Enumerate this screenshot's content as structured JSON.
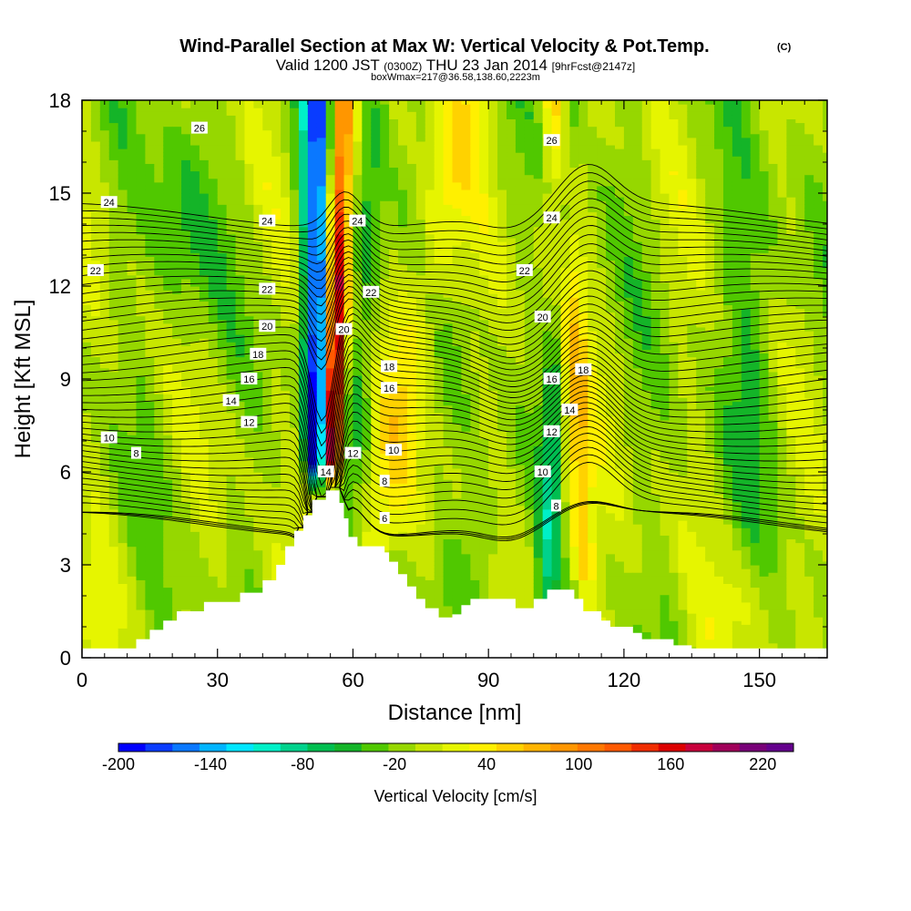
{
  "chart_data": {
    "type": "heatmap",
    "title": "Wind-Parallel Section at Max W: Vertical Velocity & Pot.Temp.",
    "title_mark": "(C)",
    "subtitle_valid": "Valid 1200 JST",
    "subtitle_utc": "(0300Z)",
    "subtitle_date": "THU 23 Jan 2014",
    "subtitle_fcst": "[9hrFcst@2147z]",
    "subtitle_box": "boxWmax=217@36.58,138.60,2223m",
    "xlabel": "Distance [nm]",
    "ylabel": "Height [Kft MSL]",
    "xlim": [
      0,
      165
    ],
    "ylim": [
      0,
      18
    ],
    "x_ticks": [
      0,
      30,
      60,
      90,
      120,
      150
    ],
    "y_ticks": [
      0,
      3,
      6,
      9,
      12,
      15,
      18
    ],
    "colorbar": {
      "label": "Vertical Velocity [cm/s]",
      "tick_labels": [
        "-200",
        "-140",
        "-80",
        "-20",
        "40",
        "100",
        "160",
        "220"
      ],
      "tick_values": [
        -200,
        -140,
        -80,
        -20,
        40,
        100,
        160,
        220
      ],
      "range": [
        -200,
        240
      ],
      "colors": [
        "#0000ff",
        "#0a3cff",
        "#0a78ff",
        "#00b4ff",
        "#00e6ff",
        "#00f0c8",
        "#00d28c",
        "#00be50",
        "#14b428",
        "#50c800",
        "#96d700",
        "#c8e600",
        "#e6f500",
        "#fff000",
        "#ffd200",
        "#ffb400",
        "#ff9600",
        "#ff7800",
        "#ff5a00",
        "#f02d00",
        "#dc0000",
        "#c8003c",
        "#a0005a",
        "#780078",
        "#64008c"
      ]
    },
    "terrain": {
      "x_nm": [
        0,
        12,
        15,
        18,
        21,
        27,
        30,
        35,
        40,
        43,
        45,
        47,
        49,
        51,
        54,
        55,
        57,
        58,
        59,
        61,
        63,
        67,
        68,
        70,
        72,
        74,
        76,
        79,
        82,
        84,
        86,
        88,
        91,
        93,
        96,
        98,
        100,
        103,
        105,
        107,
        109,
        111,
        115,
        117,
        122,
        124,
        126,
        131,
        135,
        165
      ],
      "z_kft": [
        0.3,
        0.6,
        0.9,
        1.2,
        1.5,
        1.8,
        1.8,
        2.1,
        2.5,
        3.0,
        3.6,
        4.1,
        4.6,
        5.1,
        5.4,
        5.4,
        5.0,
        4.5,
        3.9,
        3.6,
        3.6,
        3.4,
        3.1,
        2.7,
        2.3,
        1.9,
        1.6,
        1.3,
        1.4,
        1.7,
        1.9,
        1.9,
        1.9,
        1.9,
        1.6,
        1.6,
        1.9,
        2.2,
        2.2,
        2.2,
        1.9,
        1.5,
        1.2,
        1.0,
        0.8,
        0.6,
        0.6,
        0.4,
        0.3,
        0.3
      ]
    },
    "vertical_velocity_features": [
      {
        "name": "downdraft",
        "x_bottom_nm": 52,
        "x_top_nm": 53,
        "peak_cm_s": -200
      },
      {
        "name": "updraft",
        "x_bottom_nm": 56,
        "x_top_nm": 57,
        "peak_cm_s": 217
      },
      {
        "name": "weak updraft",
        "x_bottom_nm": 68,
        "x_top_nm": 85,
        "peak_cm_s": 30
      },
      {
        "name": "lee updraft",
        "x_bottom_nm": 110,
        "x_top_nm": 105,
        "peak_cm_s": 60
      },
      {
        "name": "lee downdraft",
        "x_bottom_nm": 103,
        "x_top_nm": 107,
        "peak_cm_s": -40
      }
    ],
    "theta_contours": [
      {
        "level": 26,
        "label": "26"
      },
      {
        "level": 24,
        "label": "24"
      },
      {
        "level": 22,
        "label": "22"
      },
      {
        "level": 20,
        "label": "20"
      },
      {
        "level": 18,
        "label": "18"
      },
      {
        "level": 16,
        "label": "16"
      },
      {
        "level": 14,
        "label": "14"
      },
      {
        "level": 12,
        "label": "12"
      },
      {
        "level": 10,
        "label": "10"
      },
      {
        "level": 8,
        "label": "8"
      },
      {
        "level": 6,
        "label": "6"
      }
    ],
    "contour_labels": [
      {
        "text": "26",
        "x": 26,
        "y": 17.1
      },
      {
        "text": "26",
        "x": 104,
        "y": 16.7
      },
      {
        "text": "24",
        "x": 6,
        "y": 14.7
      },
      {
        "text": "24",
        "x": 41,
        "y": 14.1
      },
      {
        "text": "24",
        "x": 61,
        "y": 14.1
      },
      {
        "text": "24",
        "x": 104,
        "y": 14.2
      },
      {
        "text": "22",
        "x": 3,
        "y": 12.5
      },
      {
        "text": "22",
        "x": 41,
        "y": 11.9
      },
      {
        "text": "22",
        "x": 64,
        "y": 11.8
      },
      {
        "text": "22",
        "x": 98,
        "y": 12.5
      },
      {
        "text": "20",
        "x": 41,
        "y": 10.7
      },
      {
        "text": "20",
        "x": 58,
        "y": 10.6
      },
      {
        "text": "20",
        "x": 102,
        "y": 11.0
      },
      {
        "text": "18",
        "x": 39,
        "y": 9.8
      },
      {
        "text": "18",
        "x": 68,
        "y": 9.4
      },
      {
        "text": "18",
        "x": 111,
        "y": 9.3
      },
      {
        "text": "16",
        "x": 37,
        "y": 9.0
      },
      {
        "text": "16",
        "x": 68,
        "y": 8.7
      },
      {
        "text": "16",
        "x": 104,
        "y": 9.0
      },
      {
        "text": "14",
        "x": 33,
        "y": 8.3
      },
      {
        "text": "14",
        "x": 108,
        "y": 8.0
      },
      {
        "text": "14",
        "x": 54,
        "y": 6.0
      },
      {
        "text": "12",
        "x": 37,
        "y": 7.6
      },
      {
        "text": "12",
        "x": 60,
        "y": 6.6
      },
      {
        "text": "12",
        "x": 104,
        "y": 7.3
      },
      {
        "text": "10",
        "x": 6,
        "y": 7.1
      },
      {
        "text": "10",
        "x": 69,
        "y": 6.7
      },
      {
        "text": "10",
        "x": 102,
        "y": 6.0
      },
      {
        "text": "8",
        "x": 12,
        "y": 6.6
      },
      {
        "text": "8",
        "x": 67,
        "y": 5.7
      },
      {
        "text": "8",
        "x": 105,
        "y": 4.9
      },
      {
        "text": "6",
        "x": 67,
        "y": 4.5
      }
    ]
  }
}
